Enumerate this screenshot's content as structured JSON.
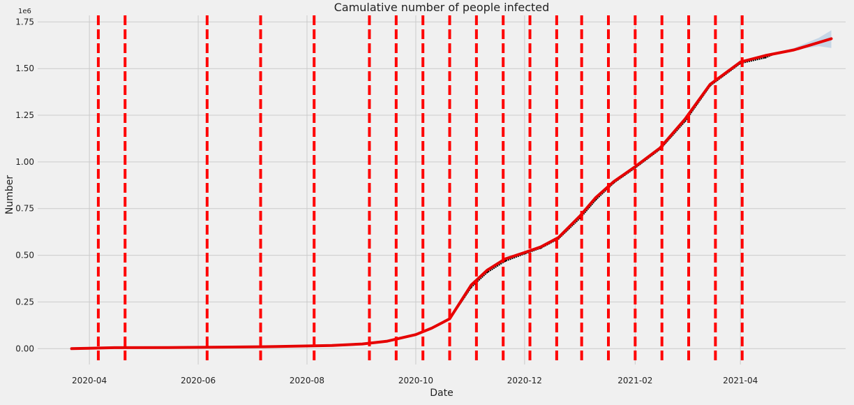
{
  "chart_data": {
    "type": "line",
    "title": "Camulative number of people infected",
    "xlabel": "Date",
    "ylabel": "Number",
    "y_scale_label": "1e6",
    "xlim": [
      "2020-03-03",
      "2021-05-30"
    ],
    "ylim": [
      -0.085,
      1.785
    ],
    "grid": true,
    "x_ticks": [
      "2020-04",
      "2020-06",
      "2020-08",
      "2020-10",
      "2020-12",
      "2021-02",
      "2021-04"
    ],
    "y_ticks": [
      "0.00",
      "0.25",
      "0.50",
      "0.75",
      "1.00",
      "1.25",
      "1.50",
      "1.75"
    ],
    "y_tick_values": [
      0.0,
      0.25,
      0.5,
      0.75,
      1.0,
      1.25,
      1.5,
      1.75
    ],
    "changepoints": [
      "2020-04-06",
      "2020-04-21",
      "2020-06-06",
      "2020-07-06",
      "2020-08-05",
      "2020-09-05",
      "2020-09-20",
      "2020-10-05",
      "2020-10-20",
      "2020-11-04",
      "2020-11-19",
      "2020-12-04",
      "2020-12-19",
      "2021-01-02",
      "2021-01-17",
      "2021-02-01",
      "2021-02-16",
      "2021-03-03",
      "2021-03-18",
      "2021-04-02"
    ],
    "series": [
      {
        "role": "observed",
        "color": "#000000",
        "x": [
          "2020-03-22",
          "2020-04-15",
          "2020-05-15",
          "2020-06-15",
          "2020-07-15",
          "2020-08-15",
          "2020-09-01",
          "2020-09-15",
          "2020-10-01",
          "2020-10-10",
          "2020-10-20",
          "2020-11-01",
          "2020-11-10",
          "2020-11-20",
          "2020-12-01",
          "2020-12-10",
          "2020-12-20",
          "2021-01-01",
          "2021-01-10",
          "2021-01-20",
          "2021-02-01",
          "2021-02-15",
          "2021-03-01",
          "2021-03-15",
          "2021-04-01",
          "2021-04-15",
          "2021-04-20"
        ],
        "values": [
          0.0,
          0.005,
          0.006,
          0.008,
          0.011,
          0.017,
          0.025,
          0.04,
          0.075,
          0.11,
          0.16,
          0.33,
          0.41,
          0.47,
          0.51,
          0.54,
          0.59,
          0.7,
          0.8,
          0.89,
          0.97,
          1.07,
          1.22,
          1.41,
          1.53,
          1.56,
          1.58
        ]
      },
      {
        "role": "forecast",
        "color": "#e50000",
        "x": [
          "2020-03-22",
          "2020-04-15",
          "2020-05-15",
          "2020-06-15",
          "2020-07-15",
          "2020-08-15",
          "2020-09-01",
          "2020-09-15",
          "2020-10-01",
          "2020-10-10",
          "2020-10-20",
          "2020-11-01",
          "2020-11-10",
          "2020-11-20",
          "2020-12-01",
          "2020-12-10",
          "2020-12-20",
          "2021-01-01",
          "2021-01-10",
          "2021-01-20",
          "2021-02-01",
          "2021-02-15",
          "2021-03-01",
          "2021-03-15",
          "2021-04-01",
          "2021-04-15",
          "2021-05-01",
          "2021-05-15",
          "2021-05-22"
        ],
        "values": [
          0.0,
          0.005,
          0.006,
          0.008,
          0.011,
          0.017,
          0.025,
          0.04,
          0.075,
          0.11,
          0.16,
          0.34,
          0.42,
          0.48,
          0.515,
          0.545,
          0.595,
          0.71,
          0.81,
          0.895,
          0.975,
          1.075,
          1.23,
          1.415,
          1.535,
          1.57,
          1.6,
          1.64,
          1.66
        ]
      }
    ],
    "uncertainty_band": {
      "color": "#aac4e0",
      "x": [
        "2021-04-01",
        "2021-04-20",
        "2021-05-01",
        "2021-05-15",
        "2021-05-22"
      ],
      "lower": [
        1.535,
        1.58,
        1.6,
        1.62,
        1.61
      ],
      "upper": [
        1.535,
        1.58,
        1.61,
        1.665,
        1.705
      ]
    }
  }
}
